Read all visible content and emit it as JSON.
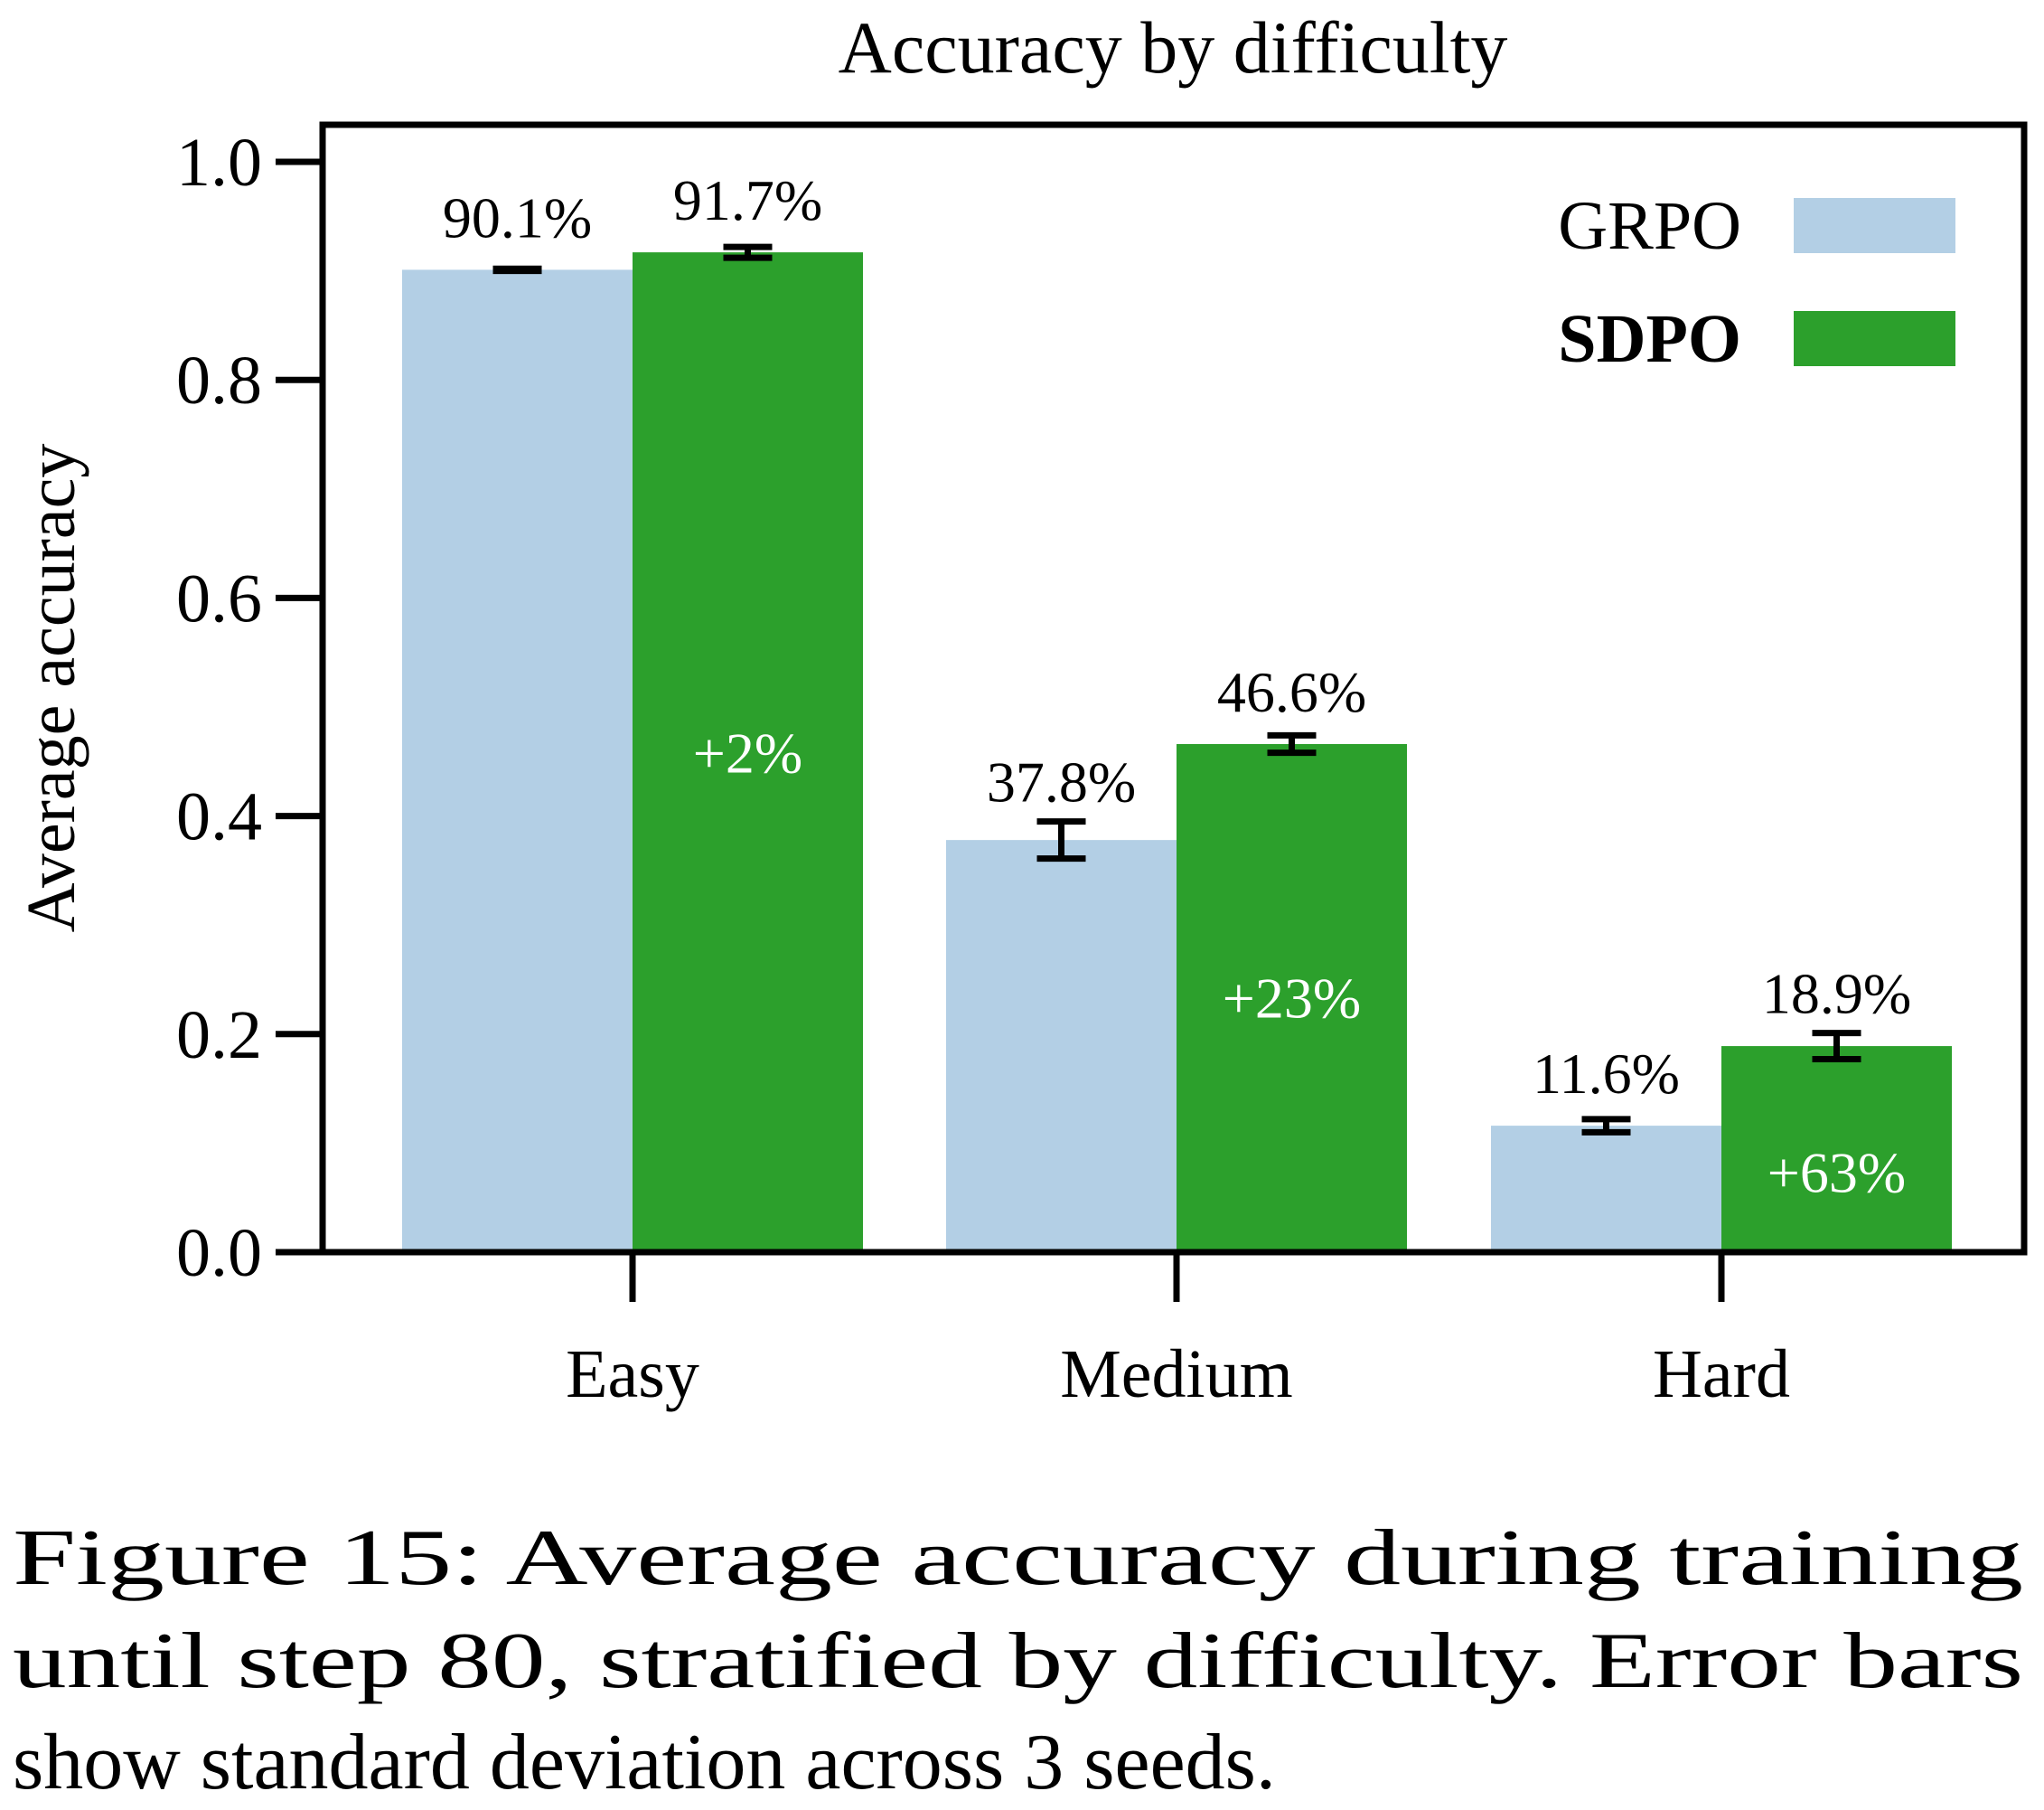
{
  "chart_data": {
    "type": "bar",
    "title": "Accuracy by difficulty",
    "xlabel": "",
    "ylabel": "Average accuracy",
    "ylim": [
      0,
      1.05
    ],
    "yticks": [
      "0.0",
      "0.2",
      "0.4",
      "0.6",
      "0.8",
      "1.0"
    ],
    "categories": [
      "Easy",
      "Medium",
      "Hard"
    ],
    "series": [
      {
        "name": "GRPO",
        "color": "#b3cfe5",
        "bold": false,
        "values": [
          0.901,
          0.378,
          0.116
        ],
        "errors": [
          0.001,
          0.017,
          0.006
        ],
        "labels": [
          "90.1%",
          "37.8%",
          "11.6%"
        ]
      },
      {
        "name": "SDPO",
        "color": "#2ca02c",
        "bold": true,
        "values": [
          0.917,
          0.466,
          0.189
        ],
        "errors": [
          0.005,
          0.008,
          0.012
        ],
        "labels": [
          "91.7%",
          "46.6%",
          "18.9%"
        ]
      }
    ],
    "improvements": [
      "+2%",
      "+23%",
      "+63%"
    ],
    "legend_position": "top-right",
    "grid": false
  },
  "caption": {
    "lines": [
      "Figure 15: Average accuracy during training",
      "until step 80, stratified by difficulty. Error bars",
      "show standard deviation across 3 seeds."
    ]
  }
}
